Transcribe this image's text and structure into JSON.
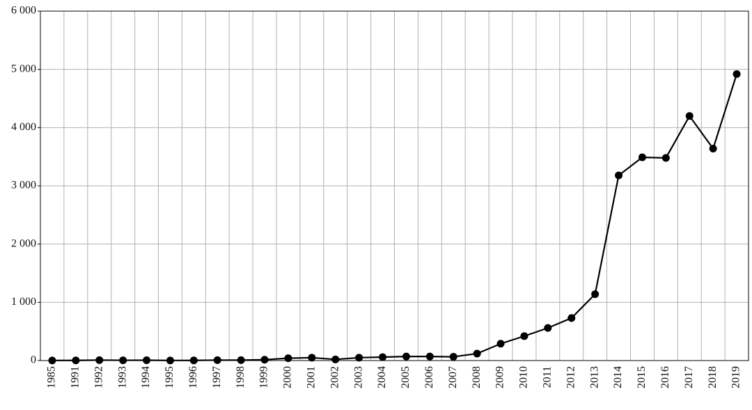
{
  "chart_data": {
    "type": "line",
    "categories": [
      "1985",
      "1991",
      "1992",
      "1993",
      "1994",
      "1995",
      "1996",
      "1997",
      "1998",
      "1999",
      "2000",
      "2001",
      "2002",
      "2003",
      "2004",
      "2005",
      "2006",
      "2007",
      "2008",
      "2009",
      "2010",
      "2011",
      "2012",
      "2013",
      "2014",
      "2015",
      "2016",
      "2017",
      "2018",
      "2019"
    ],
    "values": [
      2,
      3,
      8,
      5,
      6,
      2,
      3,
      8,
      8,
      15,
      40,
      50,
      20,
      50,
      60,
      70,
      70,
      65,
      120,
      290,
      420,
      560,
      730,
      1140,
      3180,
      3490,
      3480,
      4200,
      3640,
      4920
    ],
    "color": "#000000",
    "ylim": [
      0,
      6000
    ],
    "yticks": [
      0,
      {
        "value": 1000,
        "label": "1 000"
      },
      {
        "value": 2000,
        "label": "2 000"
      },
      {
        "value": 3000,
        "label": "3 000"
      },
      {
        "value": 4000,
        "label": "4 000"
      },
      {
        "value": 5000,
        "label": "5 000"
      },
      {
        "value": 6000,
        "label": "6 000"
      }
    ],
    "grid": true
  }
}
